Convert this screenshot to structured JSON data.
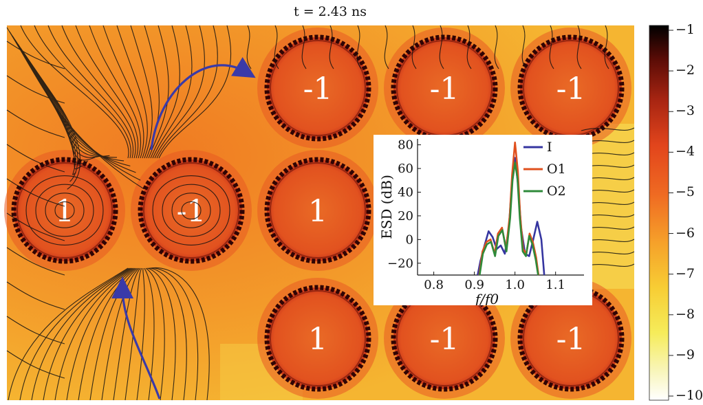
{
  "title": "t = 2.43 ns",
  "colorbar": {
    "ticks": [
      "−1",
      "−2",
      "−3",
      "−4",
      "−5",
      "−6",
      "−7",
      "−8",
      "−9",
      "−10"
    ],
    "colors": [
      "#000000",
      "#5a0c06",
      "#a82512",
      "#e2451c",
      "#ef6a22",
      "#f6a12a",
      "#f7cd34",
      "#f6ec5a",
      "#f8f5b8",
      "#ffffff"
    ]
  },
  "field": {
    "background": "#f28a26",
    "resonator_fill": "#e35a24",
    "resonator_ring": "#300404",
    "streamline_color": "#111111",
    "arrow_color": "#3a3aa8"
  },
  "resonators": [
    {
      "label": "1"
    },
    {
      "label": "-1"
    },
    {
      "label": "1"
    },
    {
      "label": "-1"
    },
    {
      "label": "-1"
    },
    {
      "label": "-1"
    },
    {
      "label": "1"
    },
    {
      "label": "-1"
    },
    {
      "label": "-1"
    }
  ],
  "chart_data": {
    "type": "line",
    "xlabel": "f/f0",
    "ylabel": "ESD (dB)",
    "xlim": [
      0.76,
      1.17
    ],
    "ylim": [
      -30,
      85
    ],
    "xticks": [
      "0.8",
      "0.9",
      "1.0",
      "1.1"
    ],
    "yticks": [
      "80",
      "60",
      "40",
      "20",
      "0",
      "−20"
    ],
    "legend_position": "top-right",
    "series": [
      {
        "name": "I",
        "color": "#3535a0",
        "x": [
          0.908,
          0.915,
          0.925,
          0.935,
          0.945,
          0.955,
          0.965,
          0.975,
          0.985,
          0.992,
          1.0,
          1.008,
          1.015,
          1.025,
          1.035,
          1.045,
          1.055,
          1.065,
          1.072
        ],
        "y": [
          -30,
          -18,
          -5,
          7,
          2,
          -8,
          -5,
          -12,
          10,
          45,
          69,
          45,
          10,
          -12,
          -14,
          0,
          15,
          0,
          -30
        ]
      },
      {
        "name": "O1",
        "color": "#e0501e",
        "x": [
          0.912,
          0.92,
          0.93,
          0.94,
          0.95,
          0.958,
          0.968,
          0.978,
          0.987,
          0.993,
          1.0,
          1.007,
          1.013,
          1.02,
          1.028,
          1.036,
          1.044,
          1.052,
          1.058
        ],
        "y": [
          -30,
          -10,
          -2,
          0,
          -12,
          5,
          10,
          -8,
          20,
          55,
          82,
          58,
          20,
          -8,
          -12,
          5,
          -2,
          -15,
          -30
        ]
      },
      {
        "name": "O2",
        "color": "#2f8a3a",
        "x": [
          0.913,
          0.921,
          0.931,
          0.941,
          0.951,
          0.959,
          0.969,
          0.979,
          0.988,
          0.994,
          1.0,
          1.006,
          1.012,
          1.019,
          1.027,
          1.035,
          1.043,
          1.051,
          1.057
        ],
        "y": [
          -30,
          -12,
          -4,
          -2,
          -14,
          3,
          8,
          -10,
          18,
          50,
          65,
          52,
          18,
          -10,
          -14,
          3,
          -4,
          -17,
          -30
        ]
      }
    ]
  }
}
